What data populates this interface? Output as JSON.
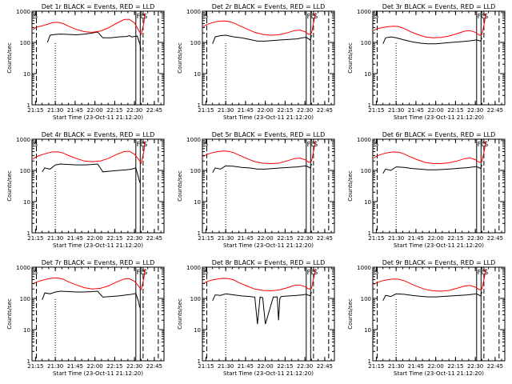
{
  "figure": {
    "ylabel": "Counts/sec",
    "xlabel": "Start Time (23-Oct-11 21:12:20)",
    "xticks": [
      "21:15",
      "21:30",
      "21:45",
      "22:00",
      "22:15",
      "22:30",
      "22:45"
    ],
    "yticks": [
      "1",
      "10",
      "100",
      "1000"
    ],
    "markers": {
      "s": "S",
      "f": "F",
      "d": "D",
      "s2": "S"
    }
  },
  "chart_data": [
    {
      "type": "line",
      "title": "Det 1r BLACK = Events, RED = LLD",
      "x_range": [
        "21:12:20",
        "22:52:20"
      ],
      "ylim": [
        1,
        1000
      ],
      "yscale": "log",
      "series": [
        {
          "color": "#000000",
          "x": [
            "21:24",
            "21:26",
            "21:30",
            "21:34",
            "21:40",
            "21:46",
            "21:52",
            "21:58",
            "22:02",
            "22:06",
            "22:12",
            "22:18",
            "22:24",
            "22:26",
            "22:28",
            "22:30",
            "22:32",
            "22:34",
            "22:35"
          ],
          "y": [
            100,
            170,
            180,
            185,
            180,
            175,
            185,
            200,
            215,
            140,
            140,
            150,
            155,
            165,
            150,
            155,
            160,
            90,
            55
          ]
        },
        {
          "color": "#ff0000",
          "x": [
            "21:13",
            "21:16",
            "21:20",
            "21:24",
            "21:28",
            "21:32",
            "21:36",
            "21:40",
            "21:46",
            "21:52",
            "21:58",
            "22:04",
            "22:10",
            "22:16",
            "22:22",
            "22:26",
            "22:30",
            "22:33",
            "22:35",
            "22:37",
            "22:38"
          ],
          "y": [
            260,
            310,
            340,
            380,
            430,
            440,
            400,
            330,
            260,
            220,
            210,
            230,
            290,
            400,
            540,
            550,
            420,
            250,
            180,
            400,
            850
          ]
        }
      ]
    },
    {
      "type": "line",
      "title": "Det 2r BLACK = Events, RED = LLD",
      "x_range": [
        "21:12:20",
        "22:52:20"
      ],
      "ylim": [
        1,
        1000
      ],
      "yscale": "log",
      "series": [
        {
          "color": "#000000",
          "x": [
            "21:20",
            "21:22",
            "21:26",
            "21:30",
            "21:36",
            "21:42",
            "21:48",
            "21:54",
            "22:00",
            "22:06",
            "22:12",
            "22:18",
            "22:24",
            "22:28",
            "22:31",
            "22:34",
            "22:35"
          ],
          "y": [
            90,
            150,
            165,
            170,
            150,
            140,
            125,
            110,
            110,
            115,
            120,
            125,
            130,
            140,
            145,
            120,
            170
          ]
        },
        {
          "color": "#ff0000",
          "x": [
            "21:13",
            "21:16",
            "21:20",
            "21:24",
            "21:28",
            "21:32",
            "21:36",
            "21:40",
            "21:46",
            "21:52",
            "21:58",
            "22:04",
            "22:10",
            "22:16",
            "22:22",
            "22:26",
            "22:30",
            "22:33",
            "22:35",
            "22:37",
            "22:38"
          ],
          "y": [
            320,
            380,
            430,
            470,
            490,
            470,
            420,
            350,
            270,
            210,
            180,
            170,
            175,
            200,
            240,
            250,
            220,
            180,
            200,
            520,
            900
          ]
        }
      ]
    },
    {
      "type": "line",
      "title": "Det 3r BLACK = Events, RED = LLD",
      "x_range": [
        "21:12:20",
        "22:52:20"
      ],
      "ylim": [
        1,
        1000
      ],
      "yscale": "log",
      "series": [
        {
          "color": "#000000",
          "x": [
            "21:20",
            "21:22",
            "21:26",
            "21:30",
            "21:36",
            "21:42",
            "21:48",
            "21:54",
            "22:00",
            "22:06",
            "22:12",
            "22:18",
            "22:24",
            "22:28",
            "22:31",
            "22:34",
            "22:35"
          ],
          "y": [
            90,
            140,
            150,
            140,
            120,
            105,
            95,
            90,
            90,
            95,
            100,
            105,
            110,
            115,
            120,
            110,
            140
          ]
        },
        {
          "color": "#ff0000",
          "x": [
            "21:13",
            "21:16",
            "21:20",
            "21:24",
            "21:28",
            "21:32",
            "21:36",
            "21:40",
            "21:46",
            "21:52",
            "21:58",
            "22:04",
            "22:10",
            "22:16",
            "22:22",
            "22:26",
            "22:30",
            "22:33",
            "22:35",
            "22:37",
            "22:38"
          ],
          "y": [
            240,
            280,
            300,
            320,
            330,
            320,
            280,
            230,
            180,
            150,
            140,
            145,
            160,
            190,
            230,
            240,
            210,
            170,
            180,
            450,
            850
          ]
        }
      ]
    },
    {
      "type": "line",
      "title": "Det 4r BLACK = Events, RED = LLD",
      "x_range": [
        "21:12:20",
        "22:52:20"
      ],
      "ylim": [
        1,
        1000
      ],
      "yscale": "log",
      "series": [
        {
          "color": "#000000",
          "x": [
            "21:20",
            "21:22",
            "21:26",
            "21:30",
            "21:34",
            "21:40",
            "21:46",
            "21:52",
            "21:58",
            "22:02",
            "22:06",
            "22:12",
            "22:18",
            "22:24",
            "22:28",
            "22:31",
            "22:33",
            "22:34"
          ],
          "y": [
            90,
            120,
            110,
            150,
            160,
            155,
            150,
            150,
            155,
            160,
            90,
            95,
            100,
            105,
            110,
            120,
            60,
            40
          ]
        },
        {
          "color": "#ff0000",
          "x": [
            "21:13",
            "21:16",
            "21:20",
            "21:24",
            "21:28",
            "21:32",
            "21:36",
            "21:40",
            "21:46",
            "21:52",
            "21:58",
            "22:04",
            "22:10",
            "22:16",
            "22:22",
            "22:26",
            "22:30",
            "22:33",
            "22:35",
            "22:37",
            "22:38"
          ],
          "y": [
            230,
            280,
            320,
            360,
            390,
            390,
            360,
            300,
            240,
            200,
            190,
            200,
            240,
            320,
            400,
            410,
            330,
            230,
            170,
            380,
            850
          ]
        }
      ]
    },
    {
      "type": "line",
      "title": "Det 5r BLACK = Events, RED = LLD",
      "x_range": [
        "21:12:20",
        "22:52:20"
      ],
      "ylim": [
        1,
        1000
      ],
      "yscale": "log",
      "series": [
        {
          "color": "#000000",
          "x": [
            "21:20",
            "21:22",
            "21:26",
            "21:30",
            "21:36",
            "21:42",
            "21:48",
            "21:54",
            "22:00",
            "22:06",
            "22:12",
            "22:18",
            "22:24",
            "22:28",
            "22:31",
            "22:34",
            "22:35"
          ],
          "y": [
            85,
            120,
            110,
            140,
            135,
            125,
            120,
            110,
            110,
            115,
            120,
            125,
            130,
            135,
            140,
            120,
            160
          ]
        },
        {
          "color": "#ff0000",
          "x": [
            "21:13",
            "21:16",
            "21:20",
            "21:24",
            "21:28",
            "21:32",
            "21:36",
            "21:40",
            "21:46",
            "21:52",
            "21:58",
            "22:04",
            "22:10",
            "22:16",
            "22:22",
            "22:26",
            "22:30",
            "22:33",
            "22:35",
            "22:37",
            "22:38"
          ],
          "y": [
            280,
            330,
            370,
            400,
            420,
            410,
            370,
            310,
            240,
            190,
            170,
            165,
            170,
            200,
            240,
            250,
            220,
            180,
            200,
            500,
            900
          ]
        }
      ]
    },
    {
      "type": "line",
      "title": "Det 6r BLACK = Events, RED = LLD",
      "x_range": [
        "21:12:20",
        "22:52:20"
      ],
      "ylim": [
        1,
        1000
      ],
      "yscale": "log",
      "series": [
        {
          "color": "#000000",
          "x": [
            "21:20",
            "21:22",
            "21:26",
            "21:30",
            "21:36",
            "21:42",
            "21:48",
            "21:54",
            "22:00",
            "22:06",
            "22:12",
            "22:18",
            "22:24",
            "22:28",
            "22:31",
            "22:34",
            "22:35"
          ],
          "y": [
            80,
            110,
            100,
            130,
            125,
            115,
            110,
            105,
            105,
            108,
            112,
            118,
            122,
            128,
            132,
            115,
            150
          ]
        },
        {
          "color": "#ff0000",
          "x": [
            "21:13",
            "21:16",
            "21:20",
            "21:24",
            "21:28",
            "21:32",
            "21:36",
            "21:40",
            "21:46",
            "21:52",
            "21:58",
            "22:04",
            "22:10",
            "22:16",
            "22:22",
            "22:26",
            "22:30",
            "22:33",
            "22:35",
            "22:37",
            "22:38"
          ],
          "y": [
            250,
            300,
            340,
            370,
            390,
            380,
            340,
            280,
            220,
            180,
            165,
            165,
            175,
            200,
            240,
            250,
            220,
            180,
            190,
            480,
            880
          ]
        }
      ]
    },
    {
      "type": "line",
      "title": "Det 7r BLACK = Events, RED = LLD",
      "x_range": [
        "21:12:20",
        "22:52:20"
      ],
      "ylim": [
        1,
        1000
      ],
      "yscale": "log",
      "series": [
        {
          "color": "#000000",
          "x": [
            "21:20",
            "21:22",
            "21:26",
            "21:30",
            "21:34",
            "21:40",
            "21:46",
            "21:52",
            "21:58",
            "22:02",
            "22:06",
            "22:12",
            "22:18",
            "22:24",
            "22:28",
            "22:31",
            "22:33",
            "22:34"
          ],
          "y": [
            90,
            150,
            140,
            160,
            170,
            165,
            160,
            160,
            165,
            170,
            110,
            115,
            120,
            130,
            135,
            145,
            80,
            50
          ]
        },
        {
          "color": "#ff0000",
          "x": [
            "21:13",
            "21:16",
            "21:20",
            "21:24",
            "21:28",
            "21:32",
            "21:36",
            "21:40",
            "21:46",
            "21:52",
            "21:58",
            "22:04",
            "22:10",
            "22:16",
            "22:22",
            "22:26",
            "22:30",
            "22:33",
            "22:35",
            "22:37",
            "22:38"
          ],
          "y": [
            290,
            340,
            380,
            420,
            450,
            450,
            410,
            340,
            270,
            220,
            200,
            210,
            250,
            330,
            420,
            430,
            350,
            250,
            190,
            420,
            880
          ]
        }
      ]
    },
    {
      "type": "line",
      "title": "Det 8r BLACK = Events, RED = LLD",
      "x_range": [
        "21:12:20",
        "22:52:20"
      ],
      "ylim": [
        1,
        1000
      ],
      "yscale": "log",
      "series": [
        {
          "color": "#000000",
          "x": [
            "21:20",
            "21:22",
            "21:26",
            "21:30",
            "21:36",
            "21:42",
            "21:48",
            "21:52",
            "21:54",
            "21:56",
            "21:58",
            "22:00",
            "22:06",
            "22:09",
            "22:10",
            "22:11",
            "22:12",
            "22:18",
            "22:24",
            "22:28",
            "22:31",
            "22:34",
            "22:35"
          ],
          "y": [
            85,
            130,
            125,
            140,
            130,
            120,
            115,
            110,
            15,
            110,
            105,
            15,
            110,
            112,
            20,
            100,
            115,
            120,
            125,
            130,
            135,
            120,
            160
          ]
        },
        {
          "color": "#ff0000",
          "x": [
            "21:13",
            "21:16",
            "21:20",
            "21:24",
            "21:28",
            "21:32",
            "21:36",
            "21:40",
            "21:46",
            "21:52",
            "21:58",
            "22:04",
            "22:10",
            "22:16",
            "22:22",
            "22:26",
            "22:30",
            "22:33",
            "22:35",
            "22:37",
            "22:38"
          ],
          "y": [
            300,
            350,
            390,
            420,
            440,
            430,
            390,
            320,
            250,
            200,
            180,
            175,
            185,
            215,
            260,
            270,
            240,
            200,
            210,
            520,
            900
          ]
        }
      ]
    },
    {
      "type": "line",
      "title": "Det 9r BLACK = Events, RED = LLD",
      "x_range": [
        "21:12:20",
        "22:52:20"
      ],
      "ylim": [
        1,
        1000
      ],
      "yscale": "log",
      "series": [
        {
          "color": "#000000",
          "x": [
            "21:20",
            "21:22",
            "21:26",
            "21:30",
            "21:36",
            "21:42",
            "21:48",
            "21:54",
            "22:00",
            "22:06",
            "22:12",
            "22:18",
            "22:24",
            "22:28",
            "22:31",
            "22:34",
            "22:35"
          ],
          "y": [
            85,
            125,
            115,
            140,
            135,
            125,
            118,
            112,
            112,
            116,
            120,
            125,
            130,
            135,
            140,
            120,
            160
          ]
        },
        {
          "color": "#ff0000",
          "x": [
            "21:13",
            "21:16",
            "21:20",
            "21:24",
            "21:28",
            "21:32",
            "21:36",
            "21:40",
            "21:46",
            "21:52",
            "21:58",
            "22:04",
            "22:10",
            "22:16",
            "22:22",
            "22:26",
            "22:30",
            "22:33",
            "22:35",
            "22:37",
            "22:38"
          ],
          "y": [
            280,
            330,
            370,
            400,
            420,
            410,
            370,
            310,
            240,
            195,
            175,
            170,
            180,
            210,
            250,
            260,
            230,
            190,
            200,
            500,
            890
          ]
        }
      ]
    }
  ]
}
